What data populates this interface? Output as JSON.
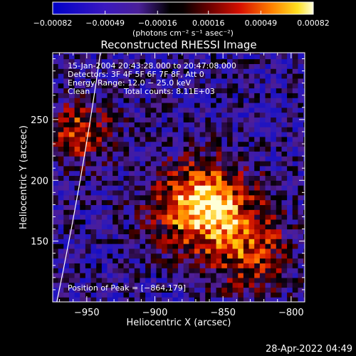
{
  "chart_data": {
    "type": "heatmap",
    "title": "Reconstructed RHESSI Image",
    "xlabel": "Heliocentric X (arcsec)",
    "ylabel": "Heliocentric Y (arcsec)",
    "xlim": [
      -975,
      -790
    ],
    "ylim": [
      100,
      305
    ],
    "x_ticks": [
      -950,
      -900,
      -850,
      -800
    ],
    "y_ticks": [
      150,
      200,
      250
    ],
    "x_tick_labels": [
      "−950",
      "−900",
      "−850",
      "−800"
    ],
    "y_tick_labels": [
      "150",
      "200",
      "250"
    ],
    "colorbar": {
      "range": [
        -0.00082,
        0.00082
      ],
      "ticks": [
        -0.00082,
        -0.00049,
        -0.00016,
        0.00016,
        0.00049,
        0.00082
      ],
      "tick_labels": [
        "−0.00082",
        "−0.00049",
        "−0.00016",
        "0.00016",
        "0.00049",
        "0.00082"
      ],
      "units_label": "(photons cm⁻² s⁻¹ asec⁻²)"
    },
    "annotations": {
      "time_range": "15-Jan-2004 20:43:28.000 to 20:47:08.000",
      "detectors": "Detectors: 3F 4F 5F 6F 7F 8F, Att 0",
      "energy_range": "Energy Range: 12.0 − 25.0 keV",
      "algorithm": "Clean",
      "total_counts": "Total counts: 8.11E+03",
      "peak_position": "Position of Peak = [−864,179]"
    },
    "peak": {
      "x": -864,
      "y": 179
    },
    "source_sigma_arcsec": 24,
    "limb_curve": {
      "x_at_bottom": -972,
      "x_at_top": -940
    },
    "footer_timestamp": "28-Apr-2022 04:49"
  },
  "colors": {
    "background": "#000000",
    "text": "#ffffff"
  }
}
